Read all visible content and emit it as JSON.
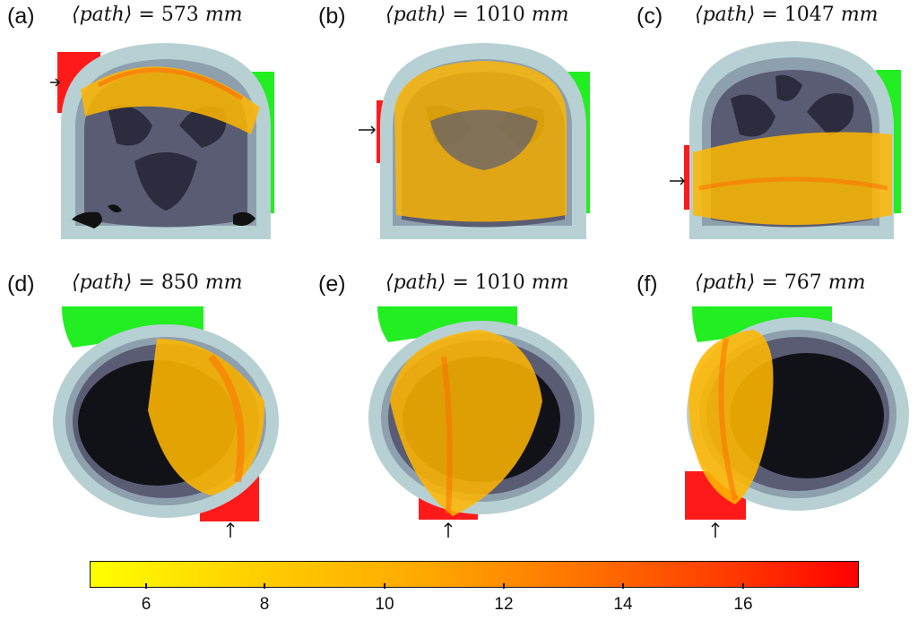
{
  "panels": [
    {
      "letter": "(a)",
      "path_label": "⟨path⟩",
      "equals": "=",
      "value": "573",
      "unit": "mm",
      "view": "coronal"
    },
    {
      "letter": "(b)",
      "path_label": "⟨path⟩",
      "equals": "=",
      "value": "1010",
      "unit": "mm",
      "view": "coronal"
    },
    {
      "letter": "(c)",
      "path_label": "⟨path⟩",
      "equals": "=",
      "value": "1047",
      "unit": "mm",
      "view": "coronal"
    },
    {
      "letter": "(d)",
      "path_label": "⟨path⟩",
      "equals": "=",
      "value": "850",
      "unit": "mm",
      "view": "axial"
    },
    {
      "letter": "(e)",
      "path_label": "⟨path⟩",
      "equals": "=",
      "value": "1010",
      "unit": "mm",
      "view": "axial"
    },
    {
      "letter": "(f)",
      "path_label": "⟨path⟩",
      "equals": "=",
      "value": "767",
      "unit": "mm",
      "view": "axial"
    }
  ],
  "colorbar": {
    "ticks": [
      "6",
      "8",
      "10",
      "12",
      "14",
      "16"
    ],
    "colors": [
      "#ffff00",
      "#ffa500",
      "#ff0000"
    ]
  },
  "colors": {
    "source": "#ff1a1a",
    "detector": "#22ee22",
    "scalp": "#b7d0d3",
    "skull": "#8e9fad",
    "gray_matter": "#5a5c74",
    "white_matter": "#2b2c3e",
    "csf": "#111118"
  }
}
